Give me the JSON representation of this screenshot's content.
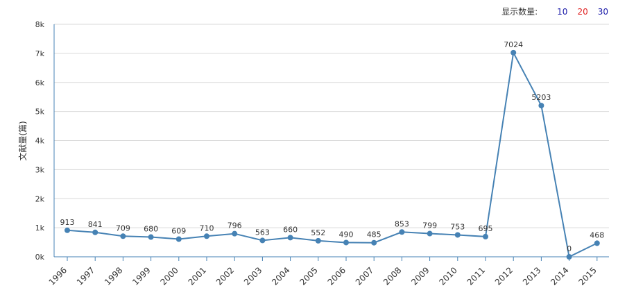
{
  "controls": {
    "display_count_label": "显示数量:",
    "options": [
      "10",
      "20",
      "30"
    ]
  },
  "colors": {
    "line": "#4682b4",
    "point": "#4682b4",
    "axis": "#4682b4",
    "grid": "#d9d9d9",
    "label": "#333333"
  },
  "chart_data": {
    "type": "line",
    "title": "",
    "xlabel": "",
    "ylabel": "文献量(篇)",
    "ylim": [
      0,
      8000
    ],
    "yticks": [
      0,
      1000,
      2000,
      3000,
      4000,
      5000,
      6000,
      7000,
      8000
    ],
    "ytick_labels": [
      "0k",
      "1k",
      "2k",
      "3k",
      "4k",
      "5k",
      "6k",
      "7k",
      "8k"
    ],
    "categories": [
      "1996",
      "1997",
      "1998",
      "1999",
      "2000",
      "2001",
      "2002",
      "2003",
      "2004",
      "2005",
      "2006",
      "2007",
      "2008",
      "2009",
      "2010",
      "2011",
      "2012",
      "2013",
      "2014",
      "2015"
    ],
    "values": [
      913,
      841,
      709,
      680,
      609,
      710,
      796,
      563,
      660,
      552,
      490,
      485,
      853,
      799,
      753,
      695,
      7024,
      5203,
      0,
      468
    ],
    "grid": true
  }
}
